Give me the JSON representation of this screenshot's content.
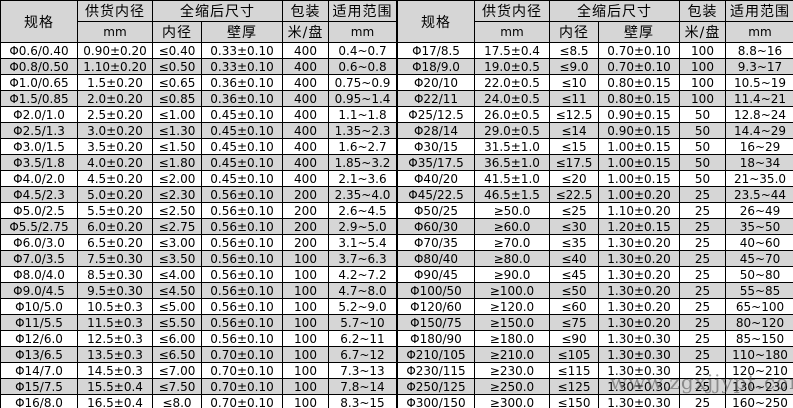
{
  "colors": {
    "row_alt": "#d6d6d6",
    "header_bg": "#d6d6d6",
    "border": "#000000",
    "watermark": "#4f4f4f"
  },
  "watermark": {
    "text": "www.zgxjjypt.com"
  },
  "table": {
    "headers": {
      "spec": "规格",
      "supply_inner_diameter": "供货内径",
      "supply_unit": "mm",
      "after_shrink": "全缩后尺寸",
      "inner_diameter": "内径",
      "wall_thickness": "壁厚",
      "packing": "包装",
      "packing_unit": "米/盘",
      "range": "适用范围",
      "range_unit": "mm"
    },
    "halves": [
      {
        "rows": [
          [
            "Φ0.6/0.40",
            "0.90±0.20",
            "≤0.40",
            "0.33±0.10",
            "400",
            "0.4~0.7"
          ],
          [
            "Φ0.8/0.50",
            "1.10±0.20",
            "≤0.50",
            "0.33±0.10",
            "400",
            "0.6~0.8"
          ],
          [
            "Φ1.0/0.65",
            "1.5±0.20",
            "≤0.65",
            "0.36±0.10",
            "400",
            "0.75~0.9"
          ],
          [
            "Φ1.5/0.85",
            "2.0±0.20",
            "≤0.85",
            "0.36±0.10",
            "400",
            "0.95~1.4"
          ],
          [
            "Φ2.0/1.0",
            "2.5±0.20",
            "≤1.00",
            "0.45±0.10",
            "400",
            "1.1~1.8"
          ],
          [
            "Φ2.5/1.3",
            "3.0±0.20",
            "≤1.30",
            "0.45±0.10",
            "400",
            "1.35~2.3"
          ],
          [
            "Φ3.0/1.5",
            "3.5±0.20",
            "≤1.50",
            "0.45±0.10",
            "400",
            "1.6~2.7"
          ],
          [
            "Φ3.5/1.8",
            "4.0±0.20",
            "≤1.80",
            "0.45±0.10",
            "400",
            "1.85~3.2"
          ],
          [
            "Φ4.0/2.0",
            "4.5±0.20",
            "≤2.00",
            "0.45±0.10",
            "400",
            "2.1~3.6"
          ],
          [
            "Φ4.5/2.3",
            "5.0±0.20",
            "≤2.30",
            "0.56±0.10",
            "200",
            "2.35~4.0"
          ],
          [
            "Φ5.0/2.5",
            "5.5±0.20",
            "≤2.50",
            "0.56±0.10",
            "200",
            "2.6~4.5"
          ],
          [
            "Φ5.5/2.75",
            "6.0±0.20",
            "≤2.75",
            "0.56±0.10",
            "200",
            "2.9~5.0"
          ],
          [
            "Φ6.0/3.0",
            "6.5±0.20",
            "≤3.00",
            "0.56±0.10",
            "200",
            "3.1~5.4"
          ],
          [
            "Φ7.0/3.5",
            "7.5±0.30",
            "≤3.50",
            "0.56±0.10",
            "100",
            "3.7~6.3"
          ],
          [
            "Φ8.0/4.0",
            "8.5±0.30",
            "≤4.00",
            "0.56±0.10",
            "100",
            "4.2~7.2"
          ],
          [
            "Φ9.0/4.5",
            "9.5±0.30",
            "≤4.50",
            "0.56±0.10",
            "100",
            "4.7~8.0"
          ],
          [
            "Φ10/5.0",
            "10.5±0.3",
            "≤5.00",
            "0.56±0.10",
            "100",
            "5.2~9.0"
          ],
          [
            "Φ11/5.5",
            "11.5±0.3",
            "≤5.50",
            "0.56±0.10",
            "100",
            "5.7~10"
          ],
          [
            "Φ12/6.0",
            "12.5±0.3",
            "≤6.00",
            "0.56±0.10",
            "100",
            "6.2~11"
          ],
          [
            "Φ13/6.5",
            "13.5±0.3",
            "≤6.50",
            "0.70±0.10",
            "100",
            "6.7~12"
          ],
          [
            "Φ14/7.0",
            "14.5±0.3",
            "≤7.00",
            "0.70±0.10",
            "100",
            "7.3~13"
          ],
          [
            "Φ15/7.5",
            "15.5±0.4",
            "≤7.50",
            "0.70±0.10",
            "100",
            "7.8~14"
          ],
          [
            "Φ16/8.0",
            "16.5±0.4",
            "≤8.0",
            "0.70±0.10",
            "100",
            "8.3~15"
          ]
        ]
      },
      {
        "rows": [
          [
            "Φ17/8.5",
            "17.5±0.4",
            "≤8.5",
            "0.70±0.10",
            "100",
            "8.8~16"
          ],
          [
            "Φ18/9.0",
            "19.0±0.5",
            "≤9.0",
            "0.70±0.10",
            "100",
            "9.3~17"
          ],
          [
            "Φ20/10",
            "22.0±0.5",
            "≤10",
            "0.80±0.15",
            "100",
            "10.5~19"
          ],
          [
            "Φ22/11",
            "24.0±0.5",
            "≤11",
            "0.80±0.15",
            "100",
            "11.4~21"
          ],
          [
            "Φ25/12.5",
            "26.0±0.5",
            "≤12.5",
            "0.90±0.15",
            "50",
            "12.8~24"
          ],
          [
            "Φ28/14",
            "29.0±0.5",
            "≤14",
            "0.90±0.15",
            "50",
            "14.4~29"
          ],
          [
            "Φ30/15",
            "31.5±1.0",
            "≤15",
            "1.00±0.15",
            "50",
            "16~29"
          ],
          [
            "Φ35/17.5",
            "36.5±1.0",
            "≤17.5",
            "1.00±0.15",
            "50",
            "18~34"
          ],
          [
            "Φ40/20",
            "41.5±1.0",
            "≤20",
            "1.00±0.15",
            "50",
            "21~35.0"
          ],
          [
            "Φ45/22.5",
            "46.5±1.5",
            "≤22.5",
            "1.00±0.20",
            "25",
            "23.5~44"
          ],
          [
            "Φ50/25",
            "≥50.0",
            "≤25",
            "1.10±0.20",
            "25",
            "26~49"
          ],
          [
            "Φ60/30",
            "≥60.0",
            "≤30",
            "1.20±0.15",
            "25",
            "35~50"
          ],
          [
            "Φ70/35",
            "≥70.0",
            "≤35",
            "1.30±0.20",
            "25",
            "40~60"
          ],
          [
            "Φ80/40",
            "≥80.0",
            "≤40",
            "1.30±0.20",
            "25",
            "45~70"
          ],
          [
            "Φ90/45",
            "≥90.0",
            "≤45",
            "1.30±0.20",
            "25",
            "50~80"
          ],
          [
            "Φ100/50",
            "≥100.0",
            "≤50",
            "1.30±0.20",
            "25",
            "55~85"
          ],
          [
            "Φ120/60",
            "≥120.0",
            "≤60",
            "1.30±0.20",
            "25",
            "65~100"
          ],
          [
            "Φ150/75",
            "≥150.0",
            "≤75",
            "1.30±0.20",
            "25",
            "80~120"
          ],
          [
            "Φ180/90",
            "≥180.0",
            "≤90",
            "1.30±0.30",
            "25",
            "85~150"
          ],
          [
            "Φ210/105",
            "≥210.0",
            "≤105",
            "1.30±0.30",
            "25",
            "110~180"
          ],
          [
            "Φ230/115",
            "≥230.0",
            "≤115",
            "1.30±0.30",
            "25",
            "120~210"
          ],
          [
            "Φ250/125",
            "≥250.0",
            "≤125",
            "1.30±0.30",
            "25",
            "130~230"
          ],
          [
            "Φ300/150",
            "≥300.0",
            "≤150",
            "1.30±0.30",
            "25",
            "160~250"
          ]
        ]
      }
    ]
  }
}
